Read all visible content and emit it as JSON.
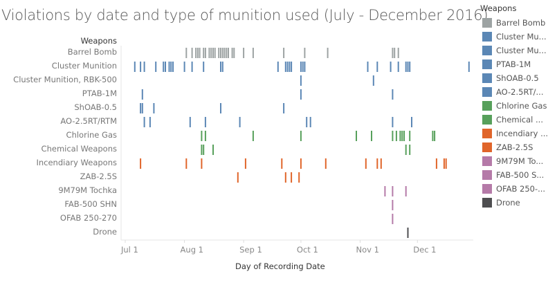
{
  "chart_data": {
    "type": "scatter",
    "mark": "tick",
    "title": "Violations by date and type of munition used (July - December 2016)",
    "xlabel": "Day of Recording Date",
    "ylabel": "Weapons",
    "x_ticks": [
      "Jul 1",
      "Aug 1",
      "Sep 1",
      "Oct 1",
      "Nov 1",
      "Dec 1"
    ],
    "x_range": [
      "2016-06-29",
      "2016-12-31"
    ],
    "legend_title": "Weapons",
    "legend_position": "right",
    "series": [
      {
        "name": "Barrel Bomb",
        "legend_label": "Barrel Bomb",
        "color": "#9da3a3",
        "dates": [
          "2016-08-02",
          "2016-08-05",
          "2016-08-07",
          "2016-08-08",
          "2016-08-09",
          "2016-08-11",
          "2016-08-12",
          "2016-08-14",
          "2016-08-15",
          "2016-08-16",
          "2016-08-17",
          "2016-08-19",
          "2016-08-20",
          "2016-08-21",
          "2016-08-22",
          "2016-08-23",
          "2016-08-24",
          "2016-08-26",
          "2016-08-27",
          "2016-09-01",
          "2016-09-06",
          "2016-09-22",
          "2016-10-03",
          "2016-10-15",
          "2016-11-18",
          "2016-11-19",
          "2016-11-21"
        ]
      },
      {
        "name": "Cluster Munition",
        "legend_label": "Cluster Mu...",
        "color": "#5b87b5",
        "dates": [
          "2016-07-06",
          "2016-07-09",
          "2016-07-11",
          "2016-07-17",
          "2016-07-21",
          "2016-07-22",
          "2016-07-24",
          "2016-07-25",
          "2016-07-26",
          "2016-08-01",
          "2016-08-05",
          "2016-08-11",
          "2016-08-20",
          "2016-08-21",
          "2016-09-19",
          "2016-09-23",
          "2016-09-24",
          "2016-09-25",
          "2016-09-26",
          "2016-10-01",
          "2016-10-02",
          "2016-10-03",
          "2016-11-05",
          "2016-11-10",
          "2016-11-17",
          "2016-11-21",
          "2016-11-25",
          "2016-11-26",
          "2016-11-27",
          "2016-12-28"
        ]
      },
      {
        "name": "Cluster Munition, RBK-500",
        "legend_label": "Cluster Mu...",
        "color": "#5b87b5",
        "dates": [
          "2016-10-01",
          "2016-11-08"
        ]
      },
      {
        "name": "PTAB-1M",
        "legend_label": "PTAB-1M",
        "color": "#5b87b5",
        "dates": [
          "2016-07-10",
          "2016-10-01",
          "2016-11-18"
        ]
      },
      {
        "name": "ShOAB-0.5",
        "legend_label": "ShOAB-0.5",
        "color": "#5b87b5",
        "dates": [
          "2016-07-09",
          "2016-07-10",
          "2016-07-16",
          "2016-08-20",
          "2016-09-22"
        ]
      },
      {
        "name": "AO-2.5RT/RTM",
        "legend_label": "AO-2.5RT/...",
        "color": "#5b87b5",
        "dates": [
          "2016-07-11",
          "2016-07-14",
          "2016-08-04",
          "2016-08-12",
          "2016-08-30",
          "2016-10-04",
          "2016-10-06",
          "2016-11-18",
          "2016-11-28"
        ]
      },
      {
        "name": "Chlorine Gas",
        "legend_label": "Chlorine Gas",
        "color": "#57a05b",
        "dates": [
          "2016-08-10",
          "2016-08-12",
          "2016-09-06",
          "2016-10-01",
          "2016-10-30",
          "2016-11-07",
          "2016-11-18",
          "2016-11-20",
          "2016-11-22",
          "2016-11-23",
          "2016-11-24",
          "2016-11-27",
          "2016-12-09",
          "2016-12-10"
        ]
      },
      {
        "name": "Chemical Weapons",
        "legend_label": "Chemical ...",
        "color": "#57a05b",
        "dates": [
          "2016-08-10",
          "2016-08-11",
          "2016-08-16",
          "2016-11-25",
          "2016-11-27"
        ]
      },
      {
        "name": "Incendiary Weapons",
        "legend_label": "Incendiary ...",
        "color": "#e0652a",
        "dates": [
          "2016-07-09",
          "2016-08-02",
          "2016-08-10",
          "2016-09-02",
          "2016-09-21",
          "2016-10-01",
          "2016-10-14",
          "2016-11-04",
          "2016-11-10",
          "2016-11-12",
          "2016-12-11",
          "2016-12-15",
          "2016-12-16"
        ]
      },
      {
        "name": "ZAB-2.5S",
        "legend_label": "ZAB-2.5S",
        "color": "#e0652a",
        "dates": [
          "2016-08-29",
          "2016-09-23",
          "2016-09-26",
          "2016-09-30"
        ]
      },
      {
        "name": "9M79M Tochka",
        "legend_label": "9M79M To...",
        "color": "#b57aa8",
        "dates": [
          "2016-11-14",
          "2016-11-18",
          "2016-11-25"
        ]
      },
      {
        "name": "FAB-500 SHN",
        "legend_label": "FAB-500 S...",
        "color": "#b57aa8",
        "dates": [
          "2016-11-18"
        ]
      },
      {
        "name": "OFAB 250-270",
        "legend_label": "OFAB 250-...",
        "color": "#b57aa8",
        "dates": [
          "2016-11-18"
        ]
      },
      {
        "name": "Drone",
        "legend_label": "Drone",
        "color": "#4e4e50",
        "dates": [
          "2016-11-26"
        ]
      }
    ]
  }
}
